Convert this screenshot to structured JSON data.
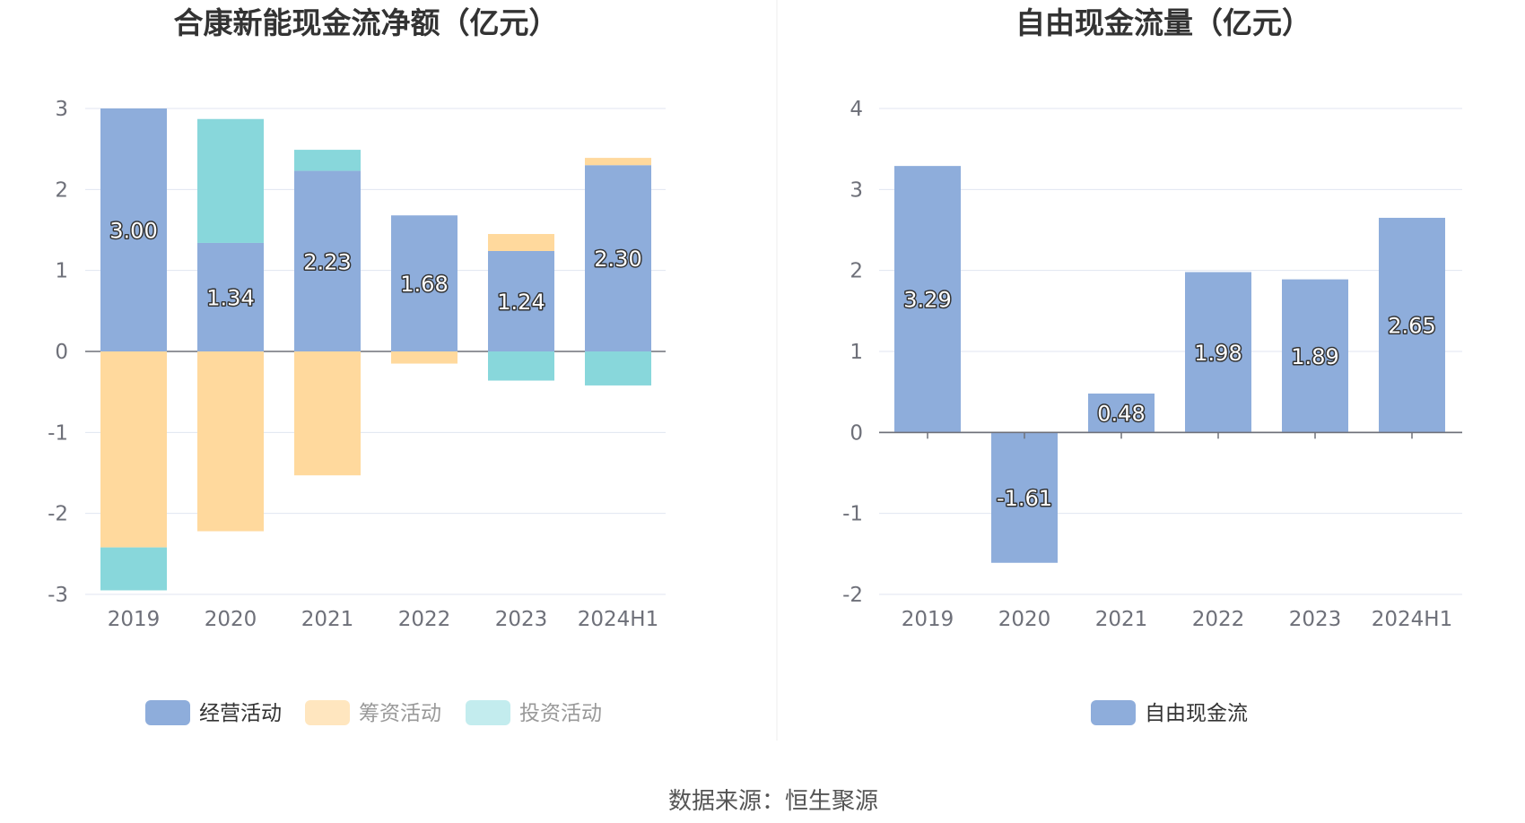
{
  "colors": {
    "operating": "#8eaddb",
    "financing": "#ffd99d",
    "investing": "#88d7db",
    "free_cash_flow": "#8eaddb",
    "grid": "#e0e6f1",
    "axis": "#6e7079",
    "legend_text_active": "#333333",
    "legend_text_inactive": "#999999",
    "legend_swatch_inactive_financing": "#ffe6bf",
    "legend_swatch_inactive_investing": "#c3ecee"
  },
  "chart_data": [
    {
      "type": "bar",
      "stacked": true,
      "title": "合康新能现金流净额（亿元）",
      "categories": [
        "2019",
        "2020",
        "2021",
        "2022",
        "2023",
        "2024H1"
      ],
      "ylim": [
        -3,
        3
      ],
      "yticks": [
        3,
        2,
        1,
        0,
        -1,
        -2,
        -3
      ],
      "grid": true,
      "legend_position": "bottom",
      "series": [
        {
          "name": "经营活动",
          "key": "operating",
          "values": [
            3.0,
            1.34,
            2.23,
            1.68,
            1.24,
            2.3
          ],
          "labels": [
            "3.00",
            "1.34",
            "2.23",
            "1.68",
            "1.24",
            "2.30"
          ]
        },
        {
          "name": "筹资活动",
          "key": "financing",
          "values": [
            -2.42,
            -2.22,
            -1.53,
            -0.15,
            0.21,
            0.09
          ]
        },
        {
          "name": "投资活动",
          "key": "investing",
          "values": [
            -0.53,
            1.53,
            0.26,
            0.0,
            -0.36,
            -0.42
          ]
        }
      ]
    },
    {
      "type": "bar",
      "stacked": false,
      "title": "自由现金流量（亿元）",
      "categories": [
        "2019",
        "2020",
        "2021",
        "2022",
        "2023",
        "2024H1"
      ],
      "ylim": [
        -2,
        4
      ],
      "yticks": [
        4,
        3,
        2,
        1,
        0,
        -1,
        -2
      ],
      "grid": true,
      "legend_position": "bottom",
      "series": [
        {
          "name": "自由现金流",
          "key": "free_cash_flow",
          "values": [
            3.29,
            -1.61,
            0.48,
            1.98,
            1.89,
            2.65
          ],
          "labels": [
            "3.29",
            "-1.61",
            "0.48",
            "1.98",
            "1.89",
            "2.65"
          ]
        }
      ]
    }
  ],
  "source_text": "数据来源：恒生聚源"
}
